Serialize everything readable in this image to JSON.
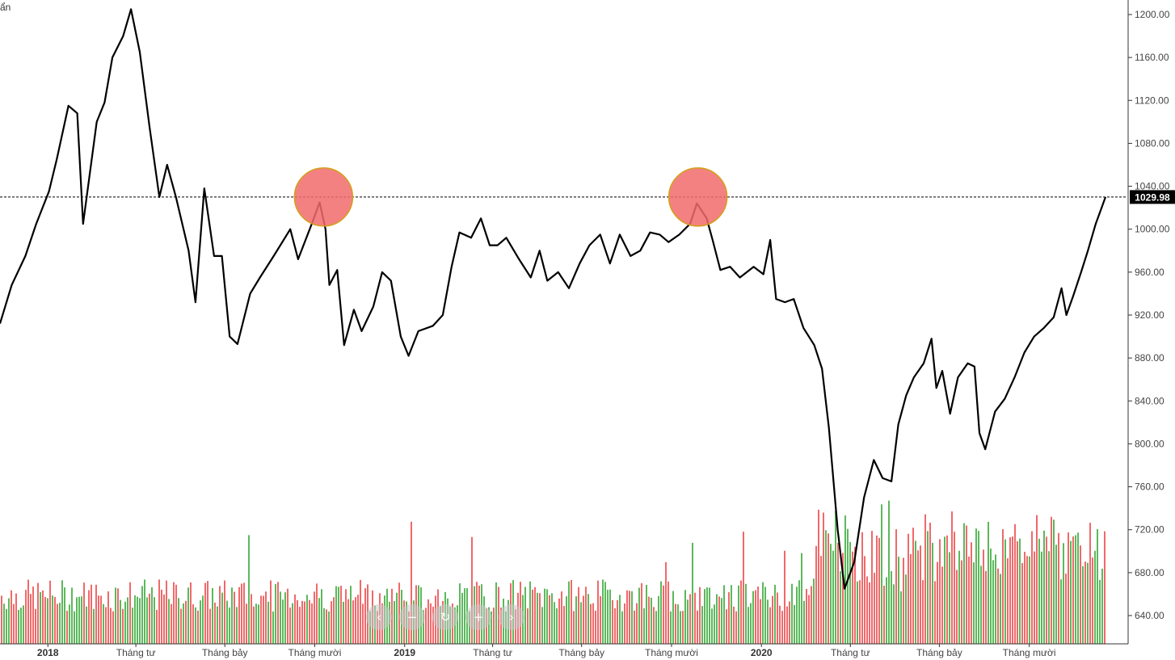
{
  "corner_label": "ẩn",
  "nav": {
    "prev": "‹",
    "zoom_out": "−",
    "reset": "↻",
    "zoom_in": "+",
    "next": "›"
  },
  "colors": {
    "up": "#5cb85c",
    "down": "#f0696b",
    "line": "#000000",
    "highlight": "#f26b6b",
    "highlight_border": "#d4a017"
  },
  "chart_data": {
    "type": "line",
    "grid": false,
    "ylim": [
      618,
      1210
    ],
    "yticks": [
      "640.00",
      "680.00",
      "720.00",
      "760.00",
      "800.00",
      "840.00",
      "880.00",
      "920.00",
      "960.00",
      "1000.00",
      "1040.00",
      "1080.00",
      "1120.00",
      "1160.00",
      "1200.00"
    ],
    "last_value": 1029.98,
    "last_value_label": "1029.98",
    "xlim": [
      "2017-11-13",
      "2020-12-18"
    ],
    "xticks": [
      {
        "date": "2018-01-01",
        "label": "2018",
        "year": true
      },
      {
        "date": "2018-04-01",
        "label": "Tháng tư",
        "year": false
      },
      {
        "date": "2018-07-01",
        "label": "Tháng bảy",
        "year": false
      },
      {
        "date": "2018-10-01",
        "label": "Tháng mười",
        "year": false
      },
      {
        "date": "2019-01-01",
        "label": "2019",
        "year": true
      },
      {
        "date": "2019-04-01",
        "label": "Tháng tư",
        "year": false
      },
      {
        "date": "2019-07-01",
        "label": "Tháng bảy",
        "year": false
      },
      {
        "date": "2019-10-01",
        "label": "Tháng mười",
        "year": false
      },
      {
        "date": "2020-01-01",
        "label": "2020",
        "year": true
      },
      {
        "date": "2020-04-01",
        "label": "Tháng tư",
        "year": false
      },
      {
        "date": "2020-07-01",
        "label": "Tháng bảy",
        "year": false
      },
      {
        "date": "2020-10-01",
        "label": "Tháng mười",
        "year": false
      }
    ],
    "series": [
      {
        "values": [
          [
            "2017-11-13",
            912
          ],
          [
            "2017-11-25",
            948
          ],
          [
            "2017-12-09",
            975
          ],
          [
            "2017-12-20",
            1005
          ],
          [
            "2018-01-02",
            1035
          ],
          [
            "2018-01-10",
            1065
          ],
          [
            "2018-01-22",
            1115
          ],
          [
            "2018-01-31",
            1108
          ],
          [
            "2018-02-06",
            1005
          ],
          [
            "2018-02-20",
            1100
          ],
          [
            "2018-02-28",
            1118
          ],
          [
            "2018-03-08",
            1160
          ],
          [
            "2018-03-19",
            1180
          ],
          [
            "2018-03-27",
            1205
          ],
          [
            "2018-04-05",
            1165
          ],
          [
            "2018-04-15",
            1095
          ],
          [
            "2018-04-25",
            1030
          ],
          [
            "2018-05-03",
            1060
          ],
          [
            "2018-05-12",
            1030
          ],
          [
            "2018-05-25",
            980
          ],
          [
            "2018-06-01",
            932
          ],
          [
            "2018-06-10",
            1038
          ],
          [
            "2018-06-20",
            975
          ],
          [
            "2018-06-28",
            975
          ],
          [
            "2018-07-06",
            900
          ],
          [
            "2018-07-14",
            893
          ],
          [
            "2018-07-27",
            940
          ],
          [
            "2018-08-06",
            955
          ],
          [
            "2018-08-20",
            975
          ],
          [
            "2018-09-06",
            1000
          ],
          [
            "2018-09-14",
            972
          ],
          [
            "2018-09-28",
            1005
          ],
          [
            "2018-10-06",
            1025
          ],
          [
            "2018-10-12",
            1000
          ],
          [
            "2018-10-16",
            948
          ],
          [
            "2018-10-24",
            962
          ],
          [
            "2018-10-31",
            892
          ],
          [
            "2018-11-10",
            925
          ],
          [
            "2018-11-18",
            905
          ],
          [
            "2018-11-30",
            928
          ],
          [
            "2018-12-09",
            960
          ],
          [
            "2018-12-18",
            952
          ],
          [
            "2018-12-28",
            900
          ],
          [
            "2019-01-05",
            882
          ],
          [
            "2019-01-15",
            905
          ],
          [
            "2019-01-30",
            910
          ],
          [
            "2019-02-09",
            920
          ],
          [
            "2019-02-18",
            965
          ],
          [
            "2019-02-26",
            997
          ],
          [
            "2019-03-10",
            992
          ],
          [
            "2019-03-20",
            1010
          ],
          [
            "2019-03-29",
            985
          ],
          [
            "2019-04-06",
            985
          ],
          [
            "2019-04-15",
            992
          ],
          [
            "2019-04-28",
            972
          ],
          [
            "2019-05-10",
            955
          ],
          [
            "2019-05-19",
            980
          ],
          [
            "2019-05-27",
            952
          ],
          [
            "2019-06-07",
            960
          ],
          [
            "2019-06-18",
            945
          ],
          [
            "2019-06-29",
            968
          ],
          [
            "2019-07-09",
            985
          ],
          [
            "2019-07-20",
            995
          ],
          [
            "2019-07-30",
            968
          ],
          [
            "2019-08-09",
            995
          ],
          [
            "2019-08-20",
            975
          ],
          [
            "2019-08-30",
            980
          ],
          [
            "2019-09-09",
            997
          ],
          [
            "2019-09-19",
            995
          ],
          [
            "2019-09-28",
            988
          ],
          [
            "2019-10-09",
            995
          ],
          [
            "2019-10-20",
            1005
          ],
          [
            "2019-10-27",
            1024
          ],
          [
            "2019-11-06",
            1010
          ],
          [
            "2019-11-12",
            990
          ],
          [
            "2019-11-20",
            962
          ],
          [
            "2019-11-30",
            965
          ],
          [
            "2019-12-10",
            955
          ],
          [
            "2019-12-24",
            965
          ],
          [
            "2020-01-03",
            958
          ],
          [
            "2020-01-10",
            990
          ],
          [
            "2020-01-16",
            935
          ],
          [
            "2020-01-25",
            932
          ],
          [
            "2020-02-03",
            935
          ],
          [
            "2020-02-13",
            908
          ],
          [
            "2020-02-24",
            892
          ],
          [
            "2020-03-03",
            870
          ],
          [
            "2020-03-10",
            815
          ],
          [
            "2020-03-19",
            720
          ],
          [
            "2020-03-26",
            665
          ],
          [
            "2020-04-05",
            690
          ],
          [
            "2020-04-15",
            750
          ],
          [
            "2020-04-25",
            785
          ],
          [
            "2020-05-04",
            768
          ],
          [
            "2020-05-13",
            765
          ],
          [
            "2020-05-20",
            818
          ],
          [
            "2020-05-28",
            845
          ],
          [
            "2020-06-05",
            862
          ],
          [
            "2020-06-15",
            875
          ],
          [
            "2020-06-23",
            898
          ],
          [
            "2020-06-28",
            852
          ],
          [
            "2020-07-04",
            868
          ],
          [
            "2020-07-12",
            828
          ],
          [
            "2020-07-20",
            862
          ],
          [
            "2020-07-30",
            875
          ],
          [
            "2020-08-06",
            872
          ],
          [
            "2020-08-11",
            810
          ],
          [
            "2020-08-17",
            795
          ],
          [
            "2020-08-27",
            830
          ],
          [
            "2020-09-06",
            842
          ],
          [
            "2020-09-16",
            862
          ],
          [
            "2020-09-26",
            885
          ],
          [
            "2020-10-06",
            900
          ],
          [
            "2020-10-16",
            908
          ],
          [
            "2020-10-26",
            918
          ],
          [
            "2020-11-03",
            945
          ],
          [
            "2020-11-08",
            920
          ],
          [
            "2020-11-15",
            938
          ],
          [
            "2020-11-23",
            960
          ],
          [
            "2020-11-30",
            980
          ],
          [
            "2020-12-08",
            1005
          ],
          [
            "2020-12-14",
            1020
          ],
          [
            "2020-12-18",
            1030
          ]
        ]
      }
    ],
    "highlights": [
      {
        "date": "2018-10-10",
        "value": 1030
      },
      {
        "date": "2019-10-28",
        "value": 1030
      }
    ]
  }
}
